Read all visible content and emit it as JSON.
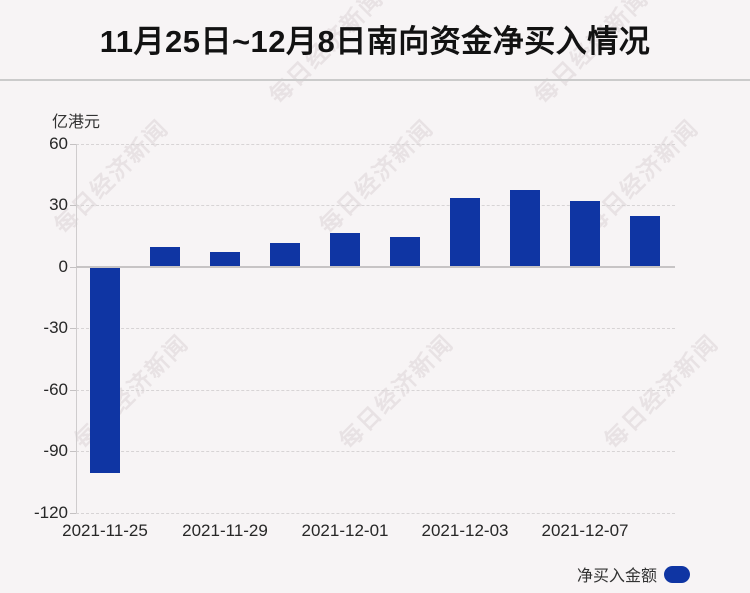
{
  "page": {
    "background": "#f7f4f5"
  },
  "header": {
    "title": "11月25日~12月8日南向资金净买入情况"
  },
  "watermark": {
    "text": "每日经济新闻"
  },
  "legend": {
    "label": "净买入金额",
    "marker_color": "#0f35a3"
  },
  "colors": {
    "bar": "#0f35a3",
    "grid": "#d7d4d5",
    "zero_line": "#c7c4c5",
    "axis_line": "#cfcccd",
    "title_text": "#121212",
    "axis_text": "#272727",
    "divider": "#cbcbcb",
    "background": "#f7f4f5"
  },
  "chart_data": {
    "type": "bar",
    "title": "11月25日~12月8日南向资金净买入情况",
    "ylabel": "亿港元",
    "xlabel": "",
    "series_name": "净买入金额",
    "bar_color": "#0f35a3",
    "categories": [
      "2021-11-25",
      "",
      "2021-11-29",
      "",
      "2021-12-01",
      "",
      "2021-12-03",
      "",
      "2021-12-07",
      ""
    ],
    "values": [
      -100.7,
      9.3,
      7.2,
      11.4,
      16.3,
      14.2,
      33.5,
      37.2,
      31.9,
      24.8
    ],
    "y_ticks": [
      60,
      30,
      0,
      -30,
      -60,
      -90,
      -120
    ],
    "ylim": [
      -120,
      60
    ],
    "grid": "horizontal-dashed",
    "zero_line": true,
    "legend_position": "bottom-right",
    "legend_entries": [
      "净买入金额"
    ]
  }
}
